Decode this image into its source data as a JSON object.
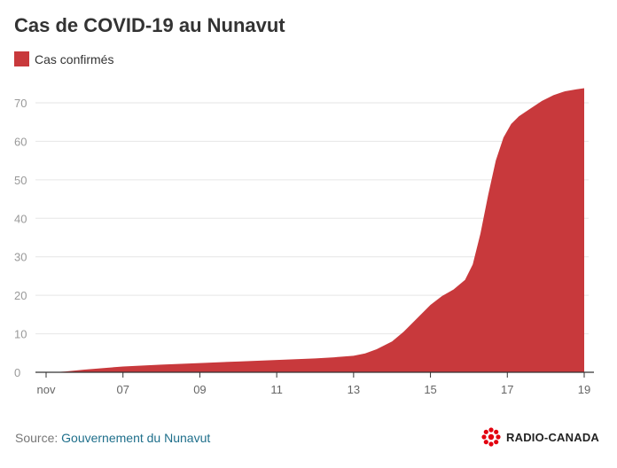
{
  "header": {
    "title": "Cas de COVID-19 au Nunavut"
  },
  "legend": {
    "label": "Cas confirmés",
    "color": "#c8393c"
  },
  "footer": {
    "source_prefix": "Source: ",
    "source_link": "Gouvernement du Nunavut",
    "brand": "RADIO-CANADA",
    "brand_color": "#e3000f"
  },
  "chart_data": {
    "type": "area",
    "title": "Cas de COVID-19 au Nunavut",
    "xlabel": "",
    "ylabel": "",
    "ylim": [
      0,
      75
    ],
    "yticks": [
      0,
      10,
      20,
      30,
      40,
      50,
      60,
      70
    ],
    "xlim": [
      5,
      19
    ],
    "xtick_values": [
      5,
      7,
      9,
      11,
      13,
      15,
      17,
      19
    ],
    "xtick_labels": [
      "nov",
      "07",
      "09",
      "11",
      "13",
      "15",
      "17",
      "19"
    ],
    "grid": true,
    "legend_position": "top-left",
    "color": "#c8393c",
    "series": [
      {
        "name": "Cas confirmés",
        "x": [
          5.2,
          5.5,
          6,
          6.5,
          7,
          8,
          9,
          10,
          11,
          12,
          12.5,
          13,
          13.3,
          13.6,
          14,
          14.3,
          14.6,
          15,
          15.3,
          15.6,
          15.9,
          16.1,
          16.3,
          16.5,
          16.7,
          16.9,
          17.1,
          17.3,
          17.6,
          17.9,
          18.2,
          18.5,
          18.8,
          19
        ],
        "values": [
          0,
          0.2,
          0.7,
          1.1,
          1.5,
          2,
          2.4,
          2.8,
          3.2,
          3.6,
          3.9,
          4.3,
          4.9,
          6,
          8,
          10.5,
          13.5,
          17.5,
          19.8,
          21.5,
          24,
          28,
          36,
          46,
          55,
          61,
          64.5,
          66.5,
          68.5,
          70.5,
          72,
          73,
          73.5,
          73.8
        ]
      }
    ]
  }
}
